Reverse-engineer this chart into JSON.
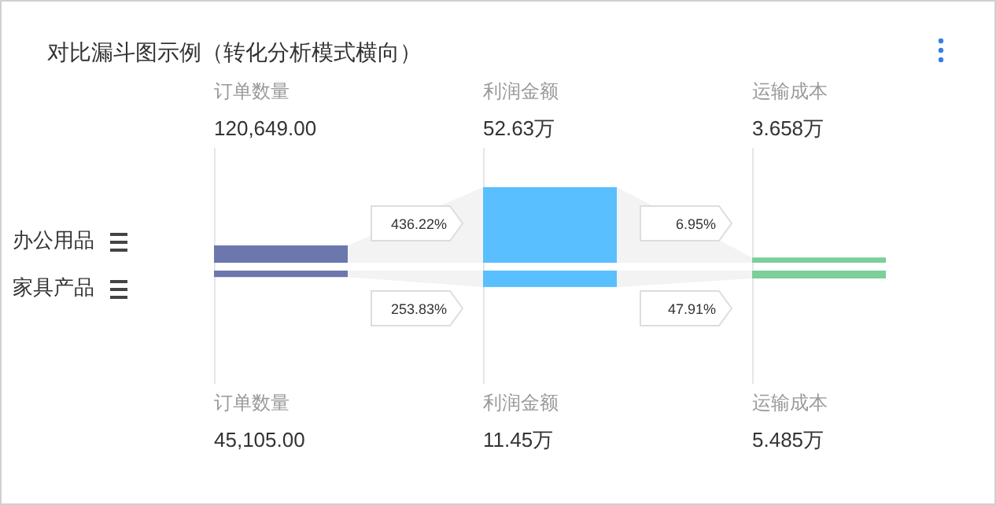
{
  "chart_data": {
    "type": "other",
    "title": "对比漏斗图示例（转化分析模式横向）",
    "categories": [
      "订单数量",
      "利润金额",
      "运输成本"
    ],
    "series": [
      {
        "name": "办公用品",
        "colors": [
          "#6b77ad",
          "#59bfff",
          "#7ccf9a"
        ],
        "values": [
          120649,
          52.63,
          3.658
        ],
        "value_labels": [
          "120,649.00",
          "52.63万",
          "3.658万"
        ]
      },
      {
        "name": "家具产品",
        "colors": [
          "#6b77ad",
          "#59bfff",
          "#7ccf9a"
        ],
        "values": [
          45105,
          11.45,
          5.485
        ],
        "value_labels": [
          "45,105.00",
          "11.45万",
          "5.485万"
        ]
      }
    ],
    "annotations": [
      "436.22%",
      "6.95%",
      "253.83%",
      "47.91%"
    ],
    "legend": "left"
  }
}
